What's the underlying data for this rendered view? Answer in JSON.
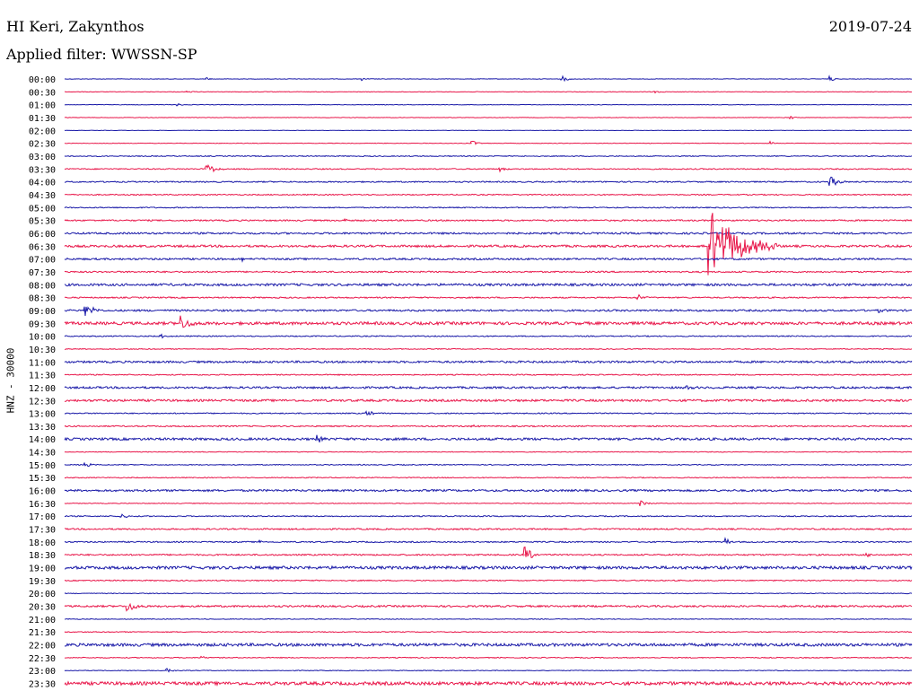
{
  "header": {
    "station": "HI Keri, Zakynthos",
    "date": "2019-07-24",
    "filter": "Applied filter: WWSSN-SP",
    "channel_label": "HNZ - 30000"
  },
  "colors": {
    "even_trace": "#1a1aa8",
    "odd_trace": "#e8174a"
  },
  "chart_data": {
    "type": "line",
    "title": "HI Keri, Zakynthos",
    "date": "2019-07-24",
    "filter": "WWSSN-SP",
    "ylabel": "HNZ - 30000",
    "minutes_per_line": 30,
    "rows": [
      "00:00",
      "00:30",
      "01:00",
      "01:30",
      "02:00",
      "02:30",
      "03:00",
      "03:30",
      "04:00",
      "04:30",
      "05:00",
      "05:30",
      "06:00",
      "06:30",
      "07:00",
      "07:30",
      "08:00",
      "08:30",
      "09:00",
      "09:30",
      "10:00",
      "10:30",
      "11:00",
      "11:30",
      "12:00",
      "12:30",
      "13:00",
      "13:30",
      "14:00",
      "14:30",
      "15:00",
      "15:30",
      "16:00",
      "16:30",
      "17:00",
      "17:30",
      "18:00",
      "18:30",
      "19:00",
      "19:30",
      "20:00",
      "20:30",
      "21:00",
      "21:30",
      "22:00",
      "22:30",
      "23:00",
      "23:30"
    ],
    "noise_levels": [
      0.3,
      0.3,
      0.3,
      0.3,
      0.2,
      0.3,
      0.5,
      0.6,
      0.7,
      0.6,
      0.6,
      0.8,
      1.0,
      1.2,
      1.0,
      0.8,
      1.3,
      0.7,
      1.0,
      1.6,
      0.6,
      0.5,
      1.1,
      0.6,
      1.1,
      1.2,
      0.6,
      0.7,
      1.3,
      0.4,
      0.5,
      0.5,
      1.1,
      0.4,
      0.6,
      0.8,
      0.7,
      0.8,
      1.6,
      0.6,
      0.4,
      1.0,
      0.4,
      0.5,
      1.6,
      0.5,
      0.4,
      1.8
    ],
    "events": [
      {
        "row": "00:00",
        "minute": 5.0,
        "amp": 2
      },
      {
        "row": "00:00",
        "minute": 10.5,
        "amp": 2
      },
      {
        "row": "00:00",
        "minute": 17.6,
        "amp": 4
      },
      {
        "row": "00:00",
        "minute": 27.1,
        "amp": 3
      },
      {
        "row": "00:30",
        "minute": 4.3,
        "amp": 2
      },
      {
        "row": "00:30",
        "minute": 20.9,
        "amp": 2
      },
      {
        "row": "01:00",
        "minute": 4.0,
        "amp": 2
      },
      {
        "row": "01:30",
        "minute": 25.7,
        "amp": 2
      },
      {
        "row": "02:30",
        "minute": 14.4,
        "amp": 4
      },
      {
        "row": "02:30",
        "minute": 25.0,
        "amp": 2
      },
      {
        "row": "03:30",
        "minute": 5.0,
        "amp": 8
      },
      {
        "row": "03:30",
        "minute": 15.4,
        "amp": 3
      },
      {
        "row": "04:00",
        "minute": 27.1,
        "amp": 7
      },
      {
        "row": "05:30",
        "minute": 9.9,
        "amp": 3
      },
      {
        "row": "06:30",
        "minute": 22.8,
        "amp": 45
      },
      {
        "row": "07:00",
        "minute": 6.3,
        "amp": 3
      },
      {
        "row": "08:30",
        "minute": 20.3,
        "amp": 4
      },
      {
        "row": "09:00",
        "minute": 0.7,
        "amp": 9
      },
      {
        "row": "09:00",
        "minute": 28.8,
        "amp": 3
      },
      {
        "row": "09:30",
        "minute": 4.1,
        "amp": 10
      },
      {
        "row": "10:00",
        "minute": 3.4,
        "amp": 3
      },
      {
        "row": "12:00",
        "minute": 22.0,
        "amp": 4
      },
      {
        "row": "13:00",
        "minute": 10.7,
        "amp": 5
      },
      {
        "row": "13:30",
        "minute": 14.4,
        "amp": 2
      },
      {
        "row": "14:00",
        "minute": 8.9,
        "amp": 5
      },
      {
        "row": "15:00",
        "minute": 0.7,
        "amp": 4
      },
      {
        "row": "16:30",
        "minute": 20.4,
        "amp": 4
      },
      {
        "row": "17:00",
        "minute": 2.0,
        "amp": 4
      },
      {
        "row": "18:00",
        "minute": 6.9,
        "amp": 2
      },
      {
        "row": "18:00",
        "minute": 23.4,
        "amp": 4
      },
      {
        "row": "18:30",
        "minute": 16.3,
        "amp": 9
      },
      {
        "row": "18:30",
        "minute": 28.4,
        "amp": 2
      },
      {
        "row": "20:30",
        "minute": 2.2,
        "amp": 8
      },
      {
        "row": "22:30",
        "minute": 4.8,
        "amp": 3
      },
      {
        "row": "23:00",
        "minute": 3.6,
        "amp": 3
      }
    ]
  }
}
